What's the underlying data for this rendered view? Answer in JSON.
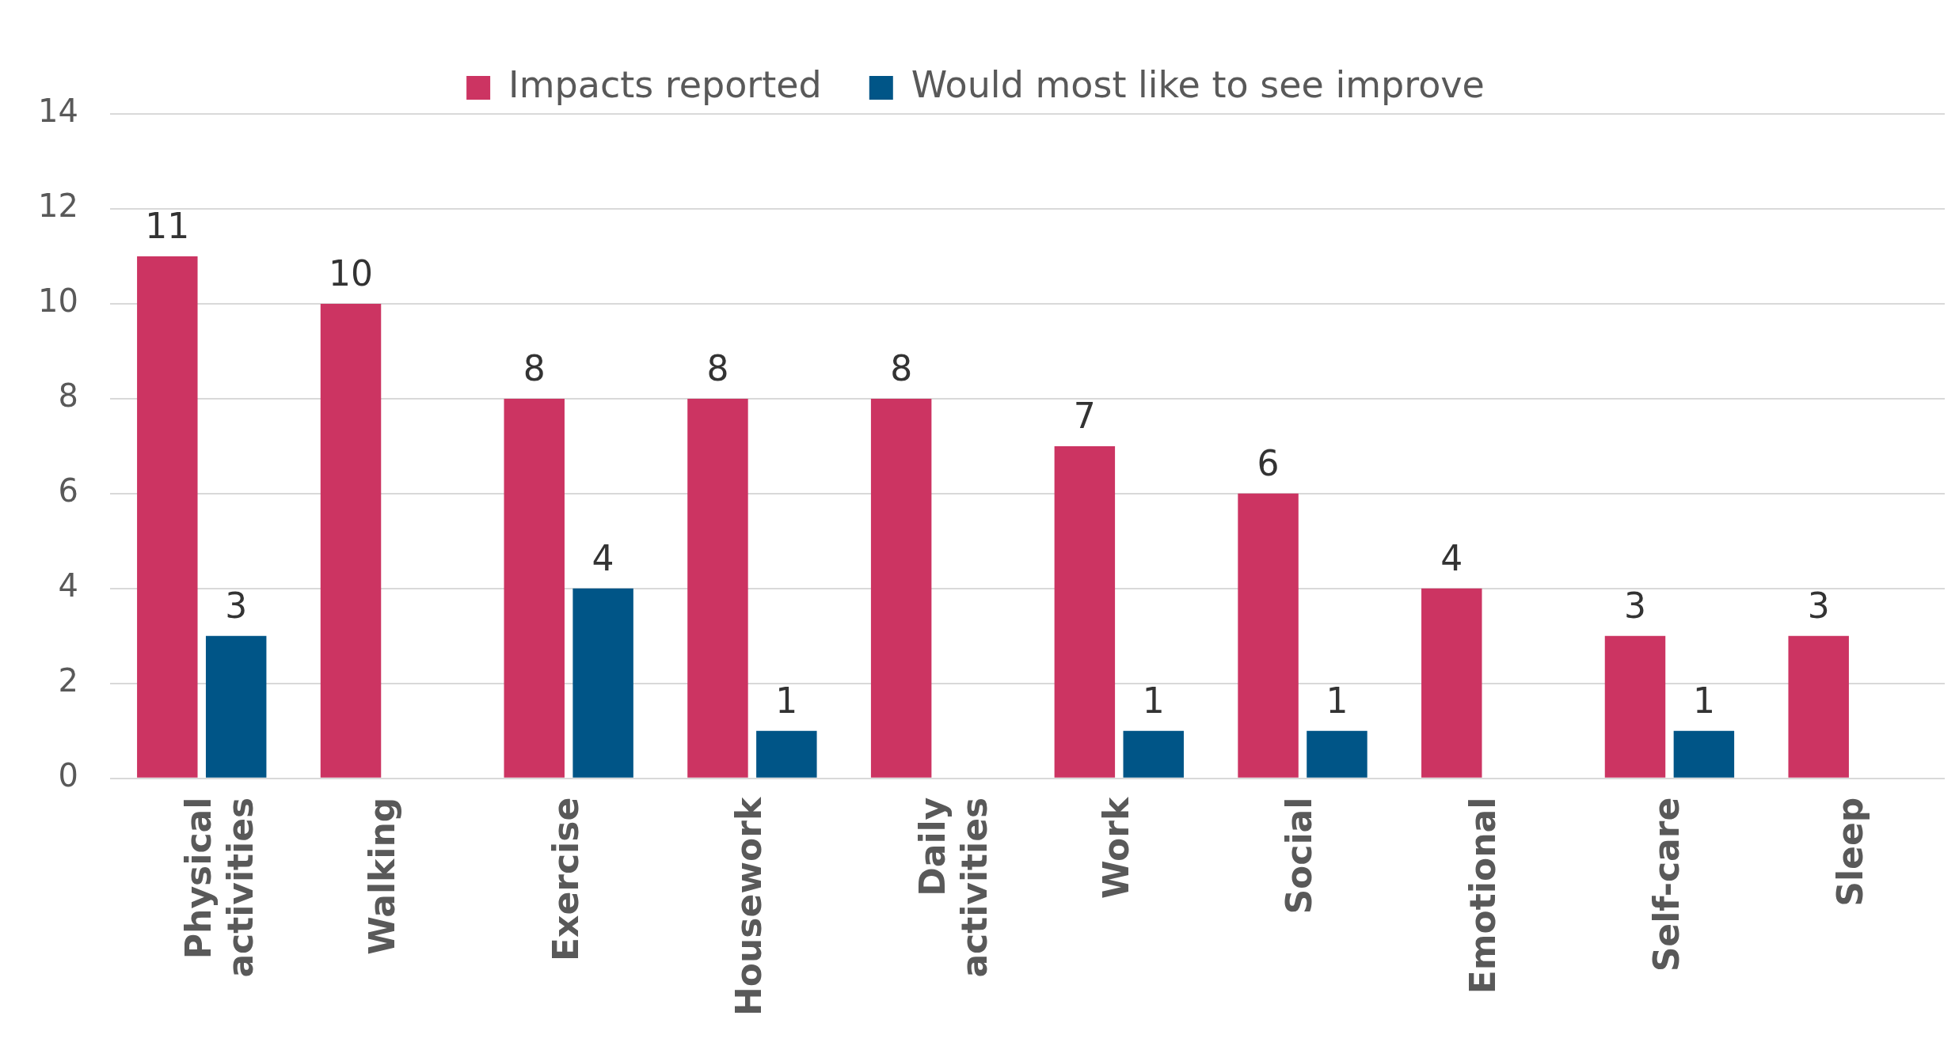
{
  "chart_data": {
    "type": "bar",
    "categories": [
      "Physical activities",
      "Walking",
      "Exercise",
      "Housework",
      "Daily activities",
      "Work",
      "Social",
      "Emotional",
      "Self-care",
      "Sleep"
    ],
    "series": [
      {
        "name": "Impacts reported",
        "color": "#cc3462",
        "values": [
          11,
          10,
          8,
          8,
          8,
          7,
          6,
          4,
          3,
          3
        ]
      },
      {
        "name": "Would most like to see improve",
        "color": "#005587",
        "values": [
          3,
          null,
          4,
          1,
          null,
          1,
          1,
          null,
          1,
          null
        ]
      }
    ],
    "ylim": [
      0,
      14
    ],
    "yticks": [
      0,
      2,
      4,
      6,
      8,
      10,
      12,
      14
    ],
    "grid": "y",
    "legend": "top",
    "data_labels": true
  }
}
